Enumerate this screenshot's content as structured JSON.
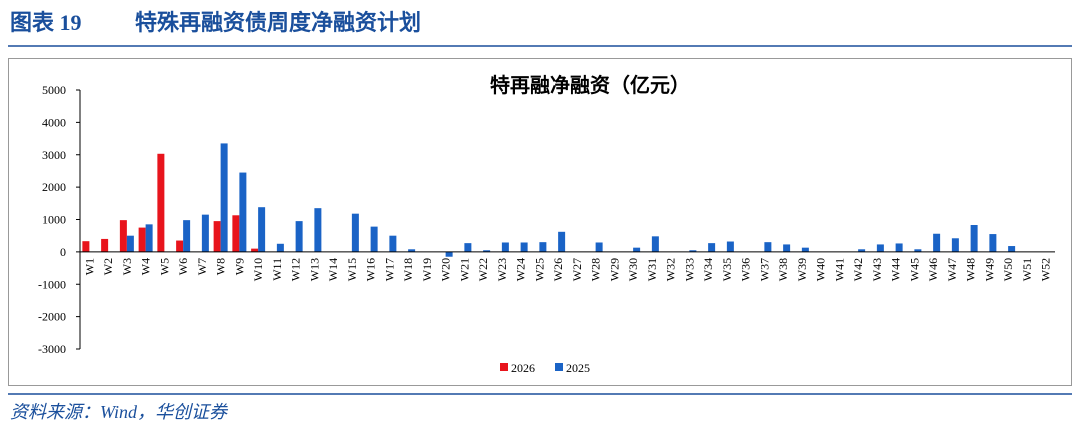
{
  "header": {
    "figure_label": "图表 19",
    "title": "特殊再融资债周度净融资计划"
  },
  "chart_data": {
    "type": "bar",
    "title": "特再融净融资（亿元）",
    "categories": [
      "W1",
      "W2",
      "W3",
      "W4",
      "W5",
      "W6",
      "W7",
      "W8",
      "W9",
      "W10",
      "W11",
      "W12",
      "W13",
      "W14",
      "W15",
      "W16",
      "W17",
      "W18",
      "W19",
      "W20",
      "W21",
      "W22",
      "W23",
      "W24",
      "W25",
      "W26",
      "W27",
      "W28",
      "W29",
      "W30",
      "W31",
      "W32",
      "W33",
      "W34",
      "W35",
      "W36",
      "W37",
      "W38",
      "W39",
      "W40",
      "W41",
      "W42",
      "W43",
      "W44",
      "W45",
      "W46",
      "W47",
      "W48",
      "W49",
      "W50",
      "W51",
      "W52"
    ],
    "series": [
      {
        "name": "2026",
        "color": "#e8141c",
        "values": [
          330,
          400,
          980,
          750,
          3030,
          350,
          null,
          950,
          1130,
          100,
          null,
          null,
          null,
          null,
          null,
          null,
          null,
          null,
          null,
          null,
          null,
          null,
          null,
          null,
          null,
          null,
          null,
          null,
          null,
          null,
          null,
          null,
          null,
          null,
          null,
          null,
          null,
          null,
          null,
          null,
          null,
          null,
          null,
          null,
          null,
          null,
          null,
          null,
          null,
          null,
          null,
          null
        ]
      },
      {
        "name": "2025",
        "color": "#1a63c6",
        "values": [
          null,
          null,
          500,
          850,
          null,
          980,
          1150,
          3350,
          2450,
          1380,
          250,
          950,
          1350,
          null,
          1180,
          780,
          500,
          80,
          null,
          -150,
          270,
          50,
          290,
          290,
          300,
          620,
          null,
          290,
          null,
          130,
          480,
          null,
          50,
          270,
          320,
          null,
          300,
          230,
          130,
          null,
          null,
          80,
          230,
          260,
          80,
          560,
          420,
          830,
          550,
          180,
          null,
          null
        ]
      }
    ],
    "ylim": [
      -3000,
      5000
    ],
    "yticks": [
      -3000,
      -2000,
      -1000,
      0,
      1000,
      2000,
      3000,
      4000,
      5000
    ],
    "grid": false,
    "legend": "bottom"
  },
  "footer": {
    "source": "资料来源：Wind，华创证券"
  }
}
